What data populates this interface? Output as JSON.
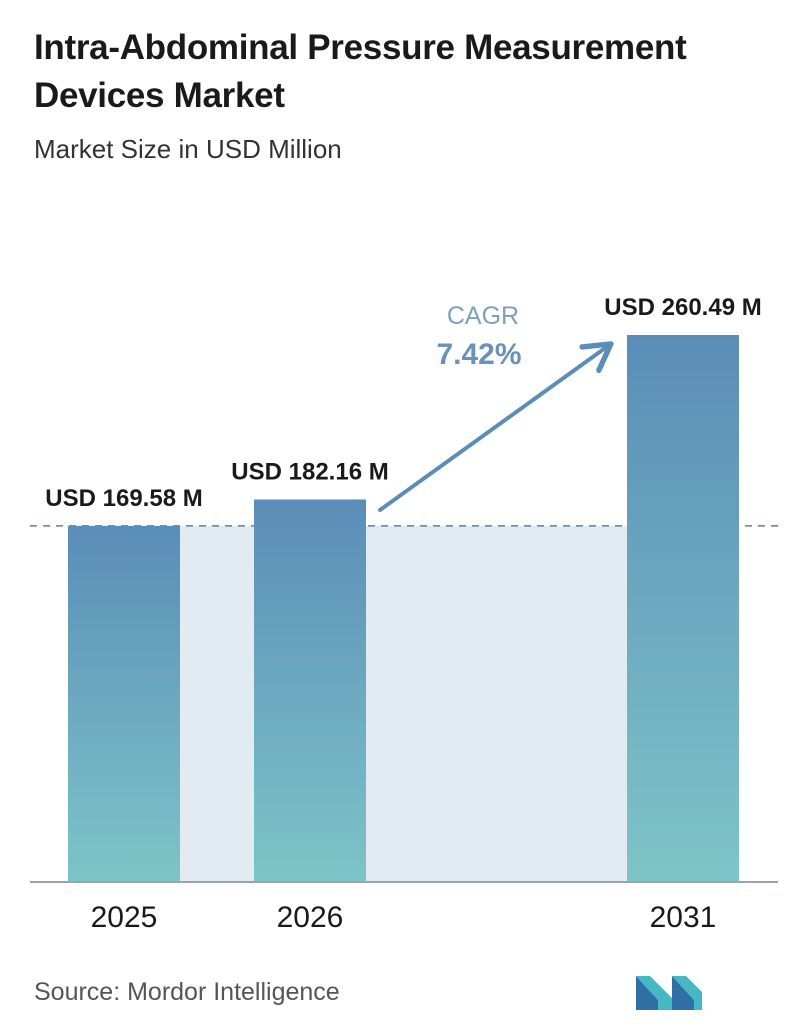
{
  "header": {
    "title": "Intra-Abdominal Pressure Measurement Devices Market",
    "subtitle": "Market Size in USD Million"
  },
  "chart_data": {
    "type": "bar",
    "title": "Intra-Abdominal Pressure Measurement Devices Market",
    "subtitle": "Market Size in USD Million",
    "categories": [
      "2025",
      "2026",
      "2031"
    ],
    "values": [
      169.58,
      182.16,
      260.49
    ],
    "data_labels": [
      "USD 169.58 M",
      "USD 182.16 M",
      "USD 260.49 M"
    ],
    "xlabel": "",
    "ylabel": "",
    "ylim": [
      0,
      260.49
    ],
    "grid": false,
    "reference_line_value": 169.58,
    "annotation": {
      "label": "CAGR",
      "value": "7.42%"
    },
    "colors": {
      "bar_top": "#5b8db8",
      "bar_bottom": "#7ec4c7",
      "shaded_band": "#e2eaf2",
      "dashed_line": "#5b7fa3",
      "arrow": "#5b8db8",
      "cagr_label": "#7f9fbf",
      "cagr_value": "#6a92b8"
    }
  },
  "footer": {
    "source": "Source: Mordor Intelligence",
    "logo_icon": "mordor-intelligence-logo-icon"
  }
}
